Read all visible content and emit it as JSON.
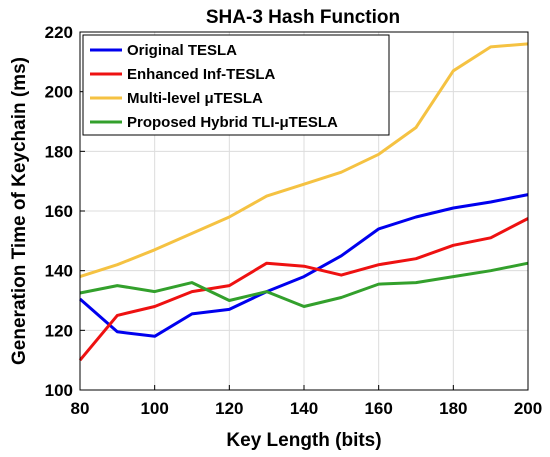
{
  "chart_data": {
    "type": "line",
    "title": "SHA-3 Hash Function",
    "xlabel": "Key Length (bits)",
    "ylabel": "Generation Time of Keychain (ms)",
    "xlim": [
      80,
      200
    ],
    "ylim": [
      100,
      220
    ],
    "xticks": [
      80,
      100,
      120,
      140,
      160,
      180,
      200
    ],
    "yticks": [
      100,
      120,
      140,
      160,
      180,
      200,
      220
    ],
    "grid": true,
    "legend_position": "top-left",
    "x": [
      80,
      90,
      100,
      110,
      120,
      130,
      140,
      150,
      160,
      170,
      180,
      190,
      200
    ],
    "series": [
      {
        "name": "Original TESLA",
        "color": "#0000ee",
        "values": [
          130.5,
          119.5,
          118,
          125.5,
          127,
          133,
          138,
          145,
          154,
          158,
          161,
          163,
          165.5
        ]
      },
      {
        "name": "Enhanced Inf-TESLA",
        "color": "#ee1111",
        "values": [
          110,
          125,
          128,
          133,
          135,
          142.5,
          141.5,
          138.5,
          142,
          144,
          148.5,
          151,
          157.5
        ]
      },
      {
        "name": "Multi-level μTESLA",
        "color": "#f5c242",
        "values": [
          138,
          142,
          147,
          152.5,
          158,
          165,
          169,
          173,
          179,
          188,
          207,
          215,
          216
        ]
      },
      {
        "name": "Proposed Hybrid TLI-μTESLA",
        "color": "#33a02c",
        "values": [
          132.5,
          135,
          133,
          136,
          130,
          133,
          128,
          131,
          135.5,
          136,
          138,
          140,
          142.5
        ]
      }
    ]
  }
}
